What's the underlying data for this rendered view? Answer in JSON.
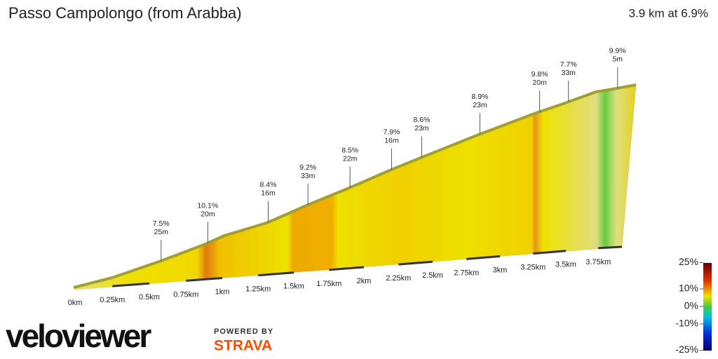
{
  "chart_data": {
    "type": "profile",
    "title": "Passo Campolongo (from Arabba)",
    "subtitle": "3.9 km at 6.9%",
    "xlim": [
      0,
      3.9
    ],
    "xticks": [
      {
        "value": 0,
        "label": "0km"
      },
      {
        "value": 0.25,
        "label": "0.25km"
      },
      {
        "value": 0.5,
        "label": "0.5km"
      },
      {
        "value": 0.75,
        "label": "0.75km"
      },
      {
        "value": 1,
        "label": "1km"
      },
      {
        "value": 1.25,
        "label": "1.25km"
      },
      {
        "value": 1.5,
        "label": "1.5km"
      },
      {
        "value": 1.75,
        "label": "1.75km"
      },
      {
        "value": 2,
        "label": "2km"
      },
      {
        "value": 2.25,
        "label": "2.25km"
      },
      {
        "value": 2.5,
        "label": "2.5km"
      },
      {
        "value": 2.75,
        "label": "2.75km"
      },
      {
        "value": 3,
        "label": "3km"
      },
      {
        "value": 3.25,
        "label": "3.25km"
      },
      {
        "value": 3.5,
        "label": "3.5km"
      },
      {
        "value": 3.75,
        "label": "3.75km"
      }
    ],
    "annotations": [
      {
        "x": 0.58,
        "grade": "7.5%",
        "gain": "25m"
      },
      {
        "x": 0.9,
        "grade": "10.1%",
        "gain": "20m"
      },
      {
        "x": 1.32,
        "grade": "8.4%",
        "gain": "16m"
      },
      {
        "x": 1.6,
        "grade": "9.2%",
        "gain": "33m"
      },
      {
        "x": 1.9,
        "grade": "8.5%",
        "gain": "22m"
      },
      {
        "x": 2.2,
        "grade": "7.9%",
        "gain": "16m"
      },
      {
        "x": 2.42,
        "grade": "8.6%",
        "gain": "23m"
      },
      {
        "x": 2.85,
        "grade": "8.9%",
        "gain": "23m"
      },
      {
        "x": 3.3,
        "grade": "9.8%",
        "gain": "20m"
      },
      {
        "x": 3.52,
        "grade": "7.7%",
        "gain": "33m"
      },
      {
        "x": 3.9,
        "grade": "9.9%",
        "gain": "5m"
      }
    ],
    "colorbar": {
      "ticks": [
        {
          "value": 25,
          "label": "25%"
        },
        {
          "value": 10,
          "label": "10%"
        },
        {
          "value": 0,
          "label": "0%"
        },
        {
          "value": -10,
          "label": "-10%"
        },
        {
          "value": -25,
          "label": "-25%"
        }
      ]
    },
    "brand": {
      "logo": "veloviewer",
      "powered": "POWERED BY",
      "partner": "STRAVA"
    }
  }
}
